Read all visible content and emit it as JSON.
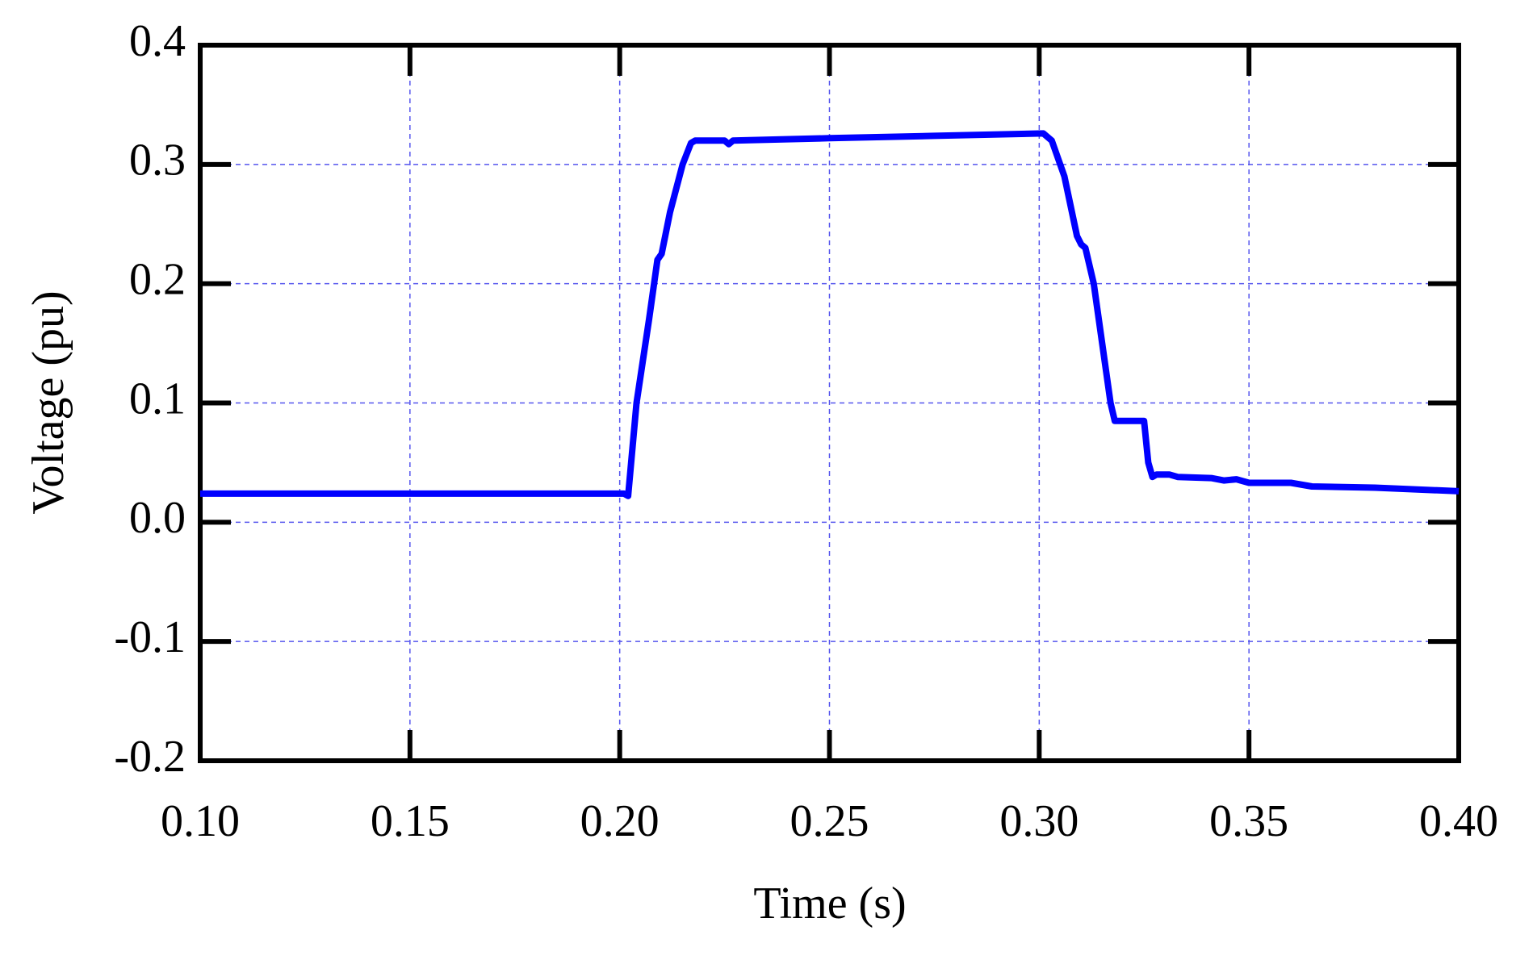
{
  "chart_data": {
    "type": "line",
    "xlabel": "Time (s)",
    "ylabel": "Voltage (pu)",
    "x": [
      0.1,
      0.201,
      0.202,
      0.204,
      0.207,
      0.209,
      0.21,
      0.212,
      0.215,
      0.217,
      0.218,
      0.225,
      0.226,
      0.227,
      0.25,
      0.275,
      0.301,
      0.303,
      0.306,
      0.309,
      0.31,
      0.311,
      0.313,
      0.315,
      0.317,
      0.318,
      0.325,
      0.326,
      0.327,
      0.328,
      0.331,
      0.333,
      0.341,
      0.344,
      0.347,
      0.35,
      0.36,
      0.365,
      0.38,
      0.4
    ],
    "values": [
      0.024,
      0.024,
      0.022,
      0.1,
      0.17,
      0.22,
      0.225,
      0.26,
      0.3,
      0.318,
      0.32,
      0.32,
      0.317,
      0.32,
      0.322,
      0.324,
      0.326,
      0.32,
      0.29,
      0.24,
      0.233,
      0.23,
      0.2,
      0.15,
      0.1,
      0.085,
      0.085,
      0.05,
      0.038,
      0.04,
      0.04,
      0.038,
      0.037,
      0.035,
      0.036,
      0.033,
      0.033,
      0.03,
      0.029,
      0.026
    ],
    "color": "#0000ff",
    "xlim": [
      0.1,
      0.4
    ],
    "xticks": [
      {
        "value": 0.1,
        "label": "0.10"
      },
      0.15,
      {
        "value": 0.2,
        "label": "0.20"
      },
      0.25,
      {
        "value": 0.3,
        "label": "0.30"
      },
      0.35,
      {
        "value": 0.4,
        "label": "0.40"
      }
    ],
    "ylim": [
      -0.2,
      0.4
    ],
    "yticks": [
      -0.2,
      -0.1,
      {
        "value": 0.0,
        "label": "0.0"
      },
      0.1,
      0.2,
      0.3,
      0.4
    ],
    "grid": true
  }
}
